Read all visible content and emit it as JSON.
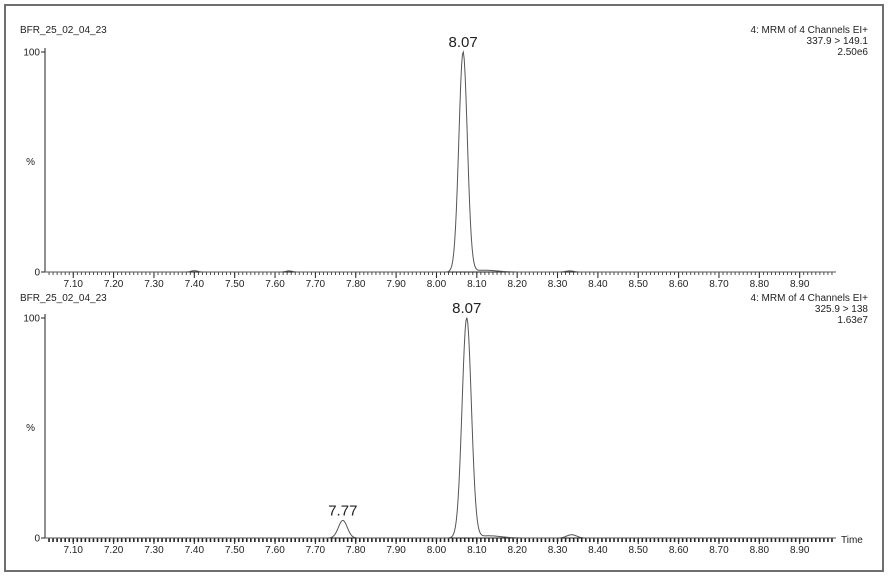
{
  "chart_data": [
    {
      "type": "line",
      "sample_label": "BFR_25_02_04_23",
      "header_lines": [
        "4: MRM of 4 Channels EI+",
        "337.9 > 149.1",
        "2.50e6"
      ],
      "ylabel": "%",
      "yticks": [
        "0",
        "100"
      ],
      "xlim": [
        7.03,
        8.99
      ],
      "ylim": [
        0,
        100
      ],
      "xticks": [
        "7.10",
        "7.20",
        "7.30",
        "7.40",
        "7.50",
        "7.60",
        "7.70",
        "7.80",
        "7.90",
        "8.00",
        "8.10",
        "8.20",
        "8.30",
        "8.40",
        "8.50",
        "8.60",
        "8.70",
        "8.80",
        "8.90"
      ],
      "peaks": [
        {
          "label": "8.07",
          "rt": 8.066,
          "height": 100,
          "sigma": 0.0105
        }
      ],
      "minor_bumps": [
        {
          "rt": 7.4,
          "height": 0.6,
          "sigma": 0.008
        },
        {
          "rt": 7.635,
          "height": 0.5,
          "sigma": 0.008
        },
        {
          "rt": 8.12,
          "height": 0.8,
          "sigma": 0.03
        },
        {
          "rt": 8.33,
          "height": 0.5,
          "sigma": 0.01
        }
      ],
      "xlabel": ""
    },
    {
      "type": "line",
      "sample_label": "BFR_25_02_04_23",
      "header_lines": [
        "4: MRM of 4 Channels EI+",
        "325.9 > 138",
        "1.63e7"
      ],
      "ylabel": "%",
      "yticks": [
        "0",
        "100"
      ],
      "xlim": [
        7.03,
        8.99
      ],
      "ylim": [
        0,
        100
      ],
      "xticks": [
        "7.10",
        "7.20",
        "7.30",
        "7.40",
        "7.50",
        "7.60",
        "7.70",
        "7.80",
        "7.90",
        "8.00",
        "8.10",
        "8.20",
        "8.30",
        "8.40",
        "8.50",
        "8.60",
        "8.70",
        "8.80",
        "8.90"
      ],
      "peaks": [
        {
          "label": "7.77",
          "rt": 7.768,
          "height": 8,
          "sigma": 0.011
        },
        {
          "label": "8.07",
          "rt": 8.075,
          "height": 100,
          "sigma": 0.0115
        }
      ],
      "minor_bumps": [
        {
          "rt": 8.13,
          "height": 1.0,
          "sigma": 0.03
        },
        {
          "rt": 8.335,
          "height": 1.5,
          "sigma": 0.012
        }
      ],
      "xlabel": "Time"
    }
  ],
  "colors": {
    "frame": "#6f6f6f",
    "trace": "#555555",
    "axis": "#222222",
    "text": "#222222"
  }
}
